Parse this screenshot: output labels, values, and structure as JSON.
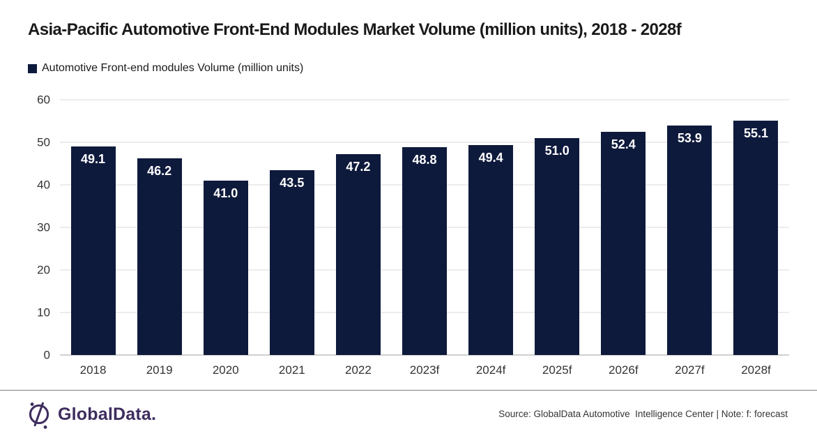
{
  "header": {
    "title": "Asia-Pacific Automotive Front-End Modules Market Volume (million units), 2018 - 2028f"
  },
  "legend": {
    "label": "Automotive Front-end modules Volume (million units)",
    "swatch_color": "#0e1a3c"
  },
  "chart_data": {
    "type": "bar",
    "title": "Asia-Pacific Automotive Front-End Modules Market Volume (million units), 2018 - 2028f",
    "categories": [
      "2018",
      "2019",
      "2020",
      "2021",
      "2022",
      "2023f",
      "2024f",
      "2025f",
      "2026f",
      "2027f",
      "2028f"
    ],
    "values": [
      49.1,
      46.2,
      41.0,
      43.5,
      47.2,
      48.8,
      49.4,
      51.0,
      52.4,
      53.9,
      55.1
    ],
    "series_name": "Automotive Front-end modules Volume (million units)",
    "xlabel": "",
    "ylabel": "",
    "ylim": [
      0,
      60
    ],
    "yticks": [
      0,
      10,
      20,
      30,
      40,
      50,
      60
    ],
    "grid": true,
    "gridline_color": "#d9d9d9",
    "bar_color": "#0e1a3c",
    "value_label_color": "#ffffff",
    "legend_position": "top-left"
  },
  "footer": {
    "logo_text": "GlobalData.",
    "logo_color": "#3e2d5e",
    "source_text": "Source: GlobalData Automotive  Intelligence Center | Note: f: forecast"
  }
}
